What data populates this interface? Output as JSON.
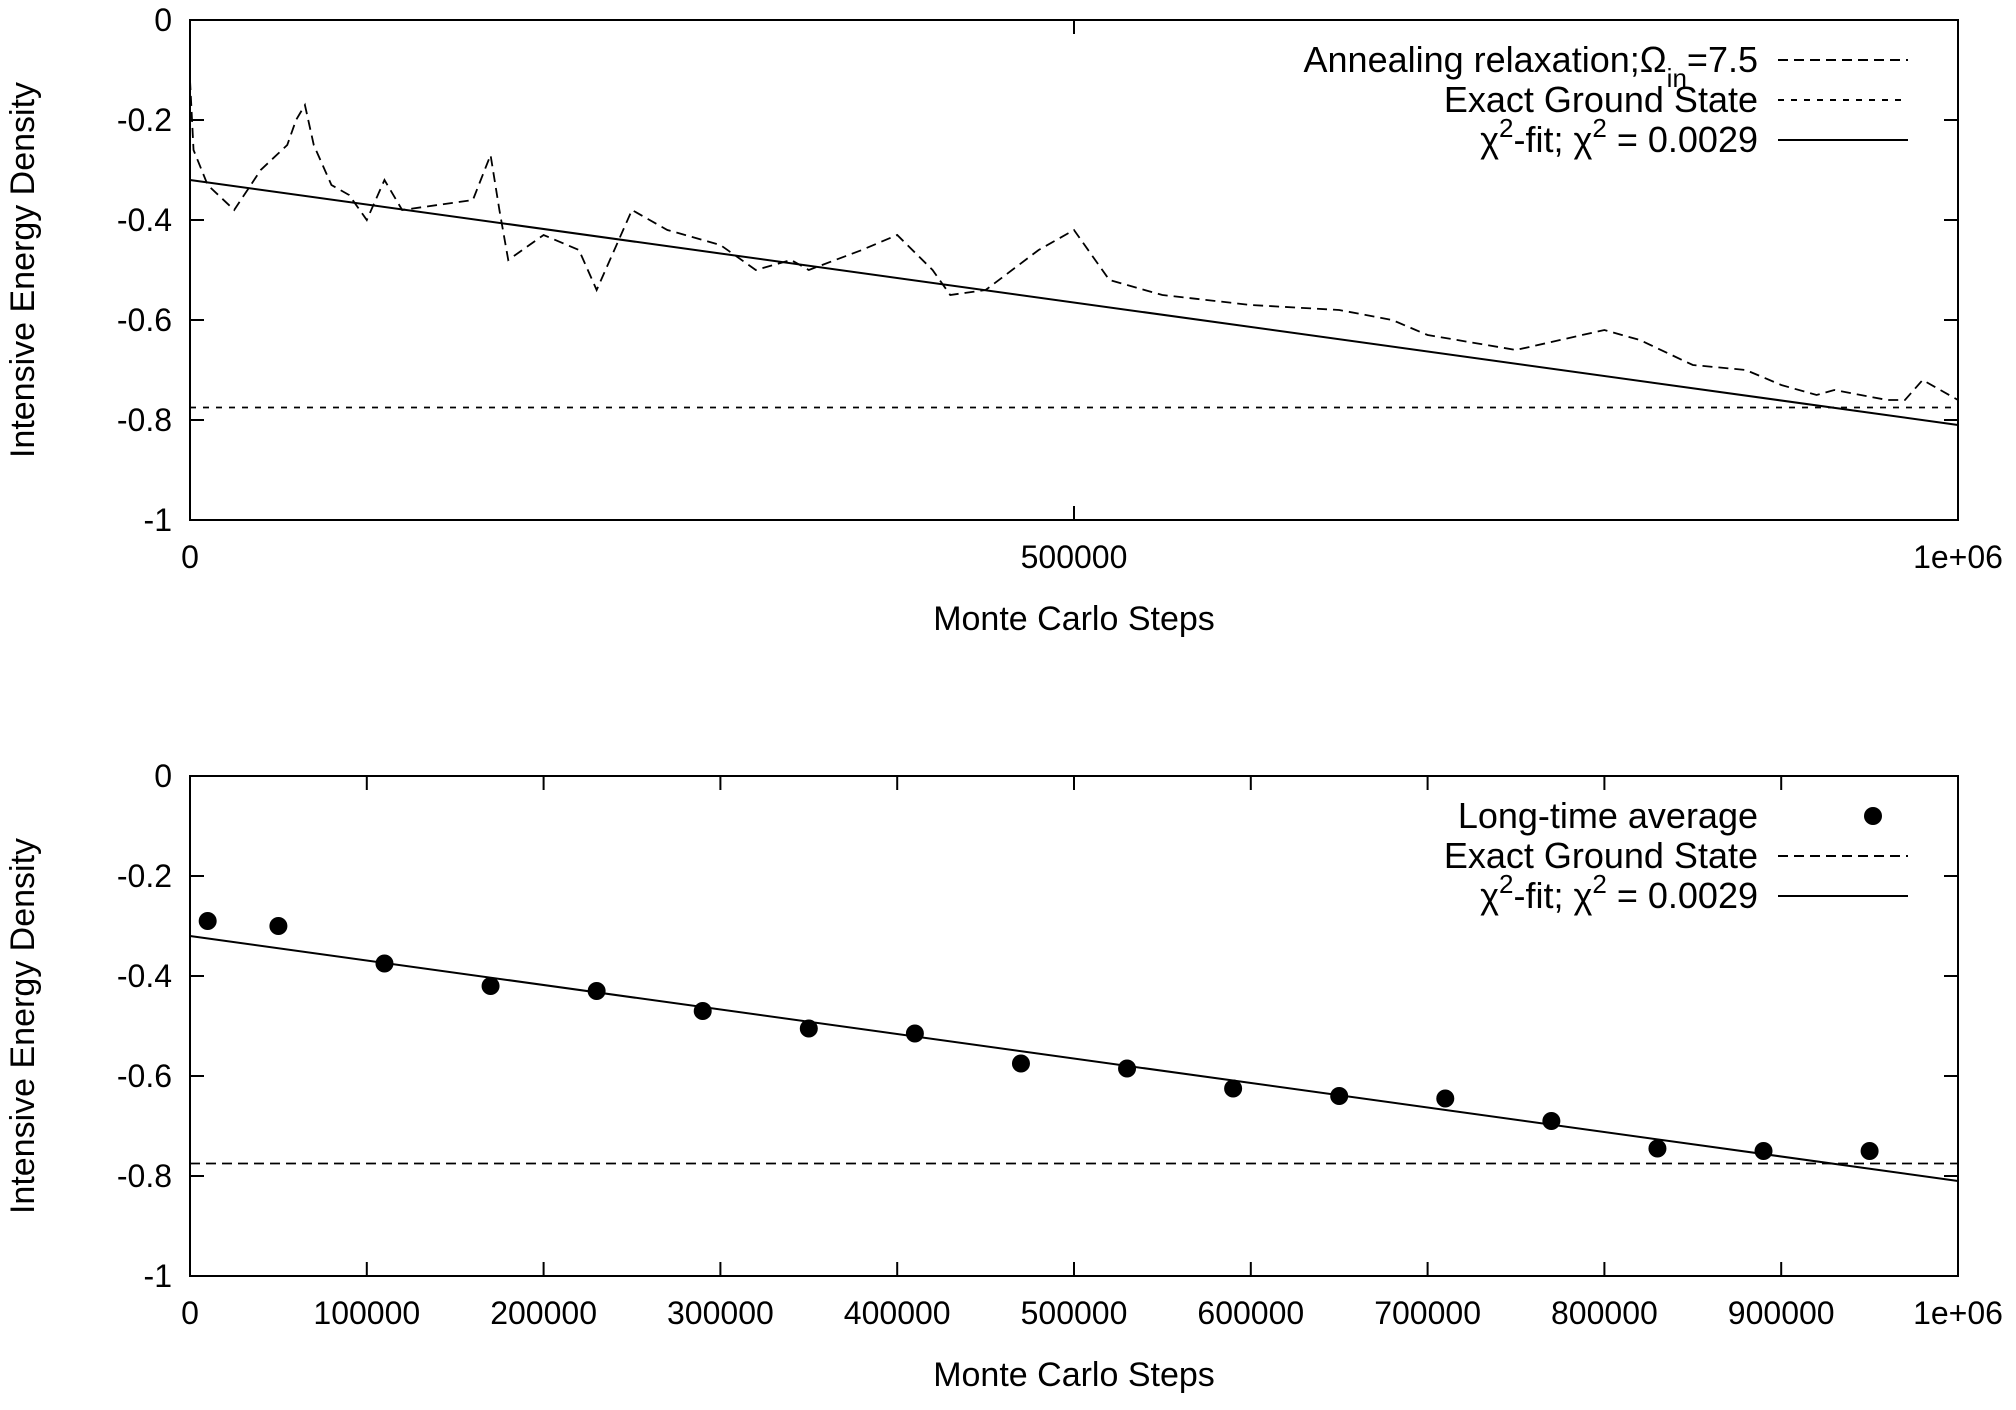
{
  "chart_data": [
    {
      "type": "line",
      "xlabel": "Monte Carlo Steps",
      "ylabel": "Intensive Energy Density",
      "xlim": [
        0,
        1000000
      ],
      "ylim": [
        -1,
        0
      ],
      "xticks": [
        "0",
        "500000",
        "1e+06"
      ],
      "yticks": [
        "0",
        "-0.2",
        "-0.4",
        "-0.6",
        "-0.8",
        "-1"
      ],
      "legend_position": "top-right",
      "series": [
        {
          "name": "Annealing relaxation;Ω",
          "name_sub": "in",
          "name_suffix": "=7.5",
          "style": "dashed",
          "x": [
            0,
            2000,
            10000,
            25000,
            40000,
            55000,
            60000,
            65000,
            70000,
            80000,
            90000,
            100000,
            110000,
            120000,
            140000,
            160000,
            170000,
            175000,
            180000,
            200000,
            220000,
            230000,
            250000,
            270000,
            300000,
            320000,
            340000,
            350000,
            380000,
            400000,
            420000,
            430000,
            450000,
            480000,
            500000,
            520000,
            550000,
            600000,
            650000,
            680000,
            700000,
            750000,
            800000,
            820000,
            850000,
            880000,
            900000,
            920000,
            930000,
            960000,
            970000,
            980000,
            1000000
          ],
          "values": [
            -0.12,
            -0.26,
            -0.33,
            -0.38,
            -0.3,
            -0.25,
            -0.2,
            -0.17,
            -0.25,
            -0.33,
            -0.35,
            -0.4,
            -0.32,
            -0.38,
            -0.37,
            -0.36,
            -0.27,
            -0.38,
            -0.48,
            -0.43,
            -0.46,
            -0.54,
            -0.38,
            -0.42,
            -0.45,
            -0.5,
            -0.48,
            -0.5,
            -0.46,
            -0.43,
            -0.5,
            -0.55,
            -0.54,
            -0.46,
            -0.42,
            -0.52,
            -0.55,
            -0.57,
            -0.58,
            -0.6,
            -0.63,
            -0.66,
            -0.62,
            -0.64,
            -0.69,
            -0.7,
            -0.73,
            -0.75,
            -0.74,
            -0.76,
            -0.76,
            -0.72,
            -0.76
          ]
        },
        {
          "name": "Exact Ground State",
          "style": "dotted",
          "x": [
            0,
            1000000
          ],
          "values": [
            -0.775,
            -0.775
          ]
        },
        {
          "name": "χ",
          "name_sup": "2",
          "name_suffix": "-fit; χ",
          "name_sup2": "2",
          "name_end": " =  0.0029",
          "style": "solid",
          "x": [
            0,
            1000000
          ],
          "values": [
            -0.32,
            -0.81
          ]
        }
      ]
    },
    {
      "type": "scatter",
      "xlabel": "Monte Carlo Steps",
      "ylabel": "Intensive Energy Density",
      "xlim": [
        0,
        1000000
      ],
      "ylim": [
        -1,
        0
      ],
      "xticks": [
        "0",
        "100000",
        "200000",
        "300000",
        "400000",
        "500000",
        "600000",
        "700000",
        "800000",
        "900000",
        "1e+06"
      ],
      "yticks": [
        "0",
        "-0.2",
        "-0.4",
        "-0.6",
        "-0.8",
        "-1"
      ],
      "legend_position": "top-right",
      "series": [
        {
          "name": "Long-time average",
          "style": "points",
          "x": [
            10000,
            50000,
            110000,
            170000,
            230000,
            290000,
            350000,
            410000,
            470000,
            530000,
            590000,
            650000,
            710000,
            770000,
            830000,
            890000,
            950000
          ],
          "values": [
            -0.29,
            -0.3,
            -0.375,
            -0.42,
            -0.43,
            -0.47,
            -0.505,
            -0.515,
            -0.575,
            -0.585,
            -0.625,
            -0.64,
            -0.645,
            -0.69,
            -0.745,
            -0.75,
            -0.75
          ]
        },
        {
          "name": "Exact Ground State",
          "style": "dashed",
          "x": [
            0,
            1000000
          ],
          "values": [
            -0.775,
            -0.775
          ]
        },
        {
          "name": "χ",
          "name_sup": "2",
          "name_suffix": "-fit; χ",
          "name_sup2": "2",
          "name_end": " =  0.0029",
          "style": "solid",
          "x": [
            0,
            1000000
          ],
          "values": [
            -0.32,
            -0.81
          ]
        }
      ]
    }
  ]
}
